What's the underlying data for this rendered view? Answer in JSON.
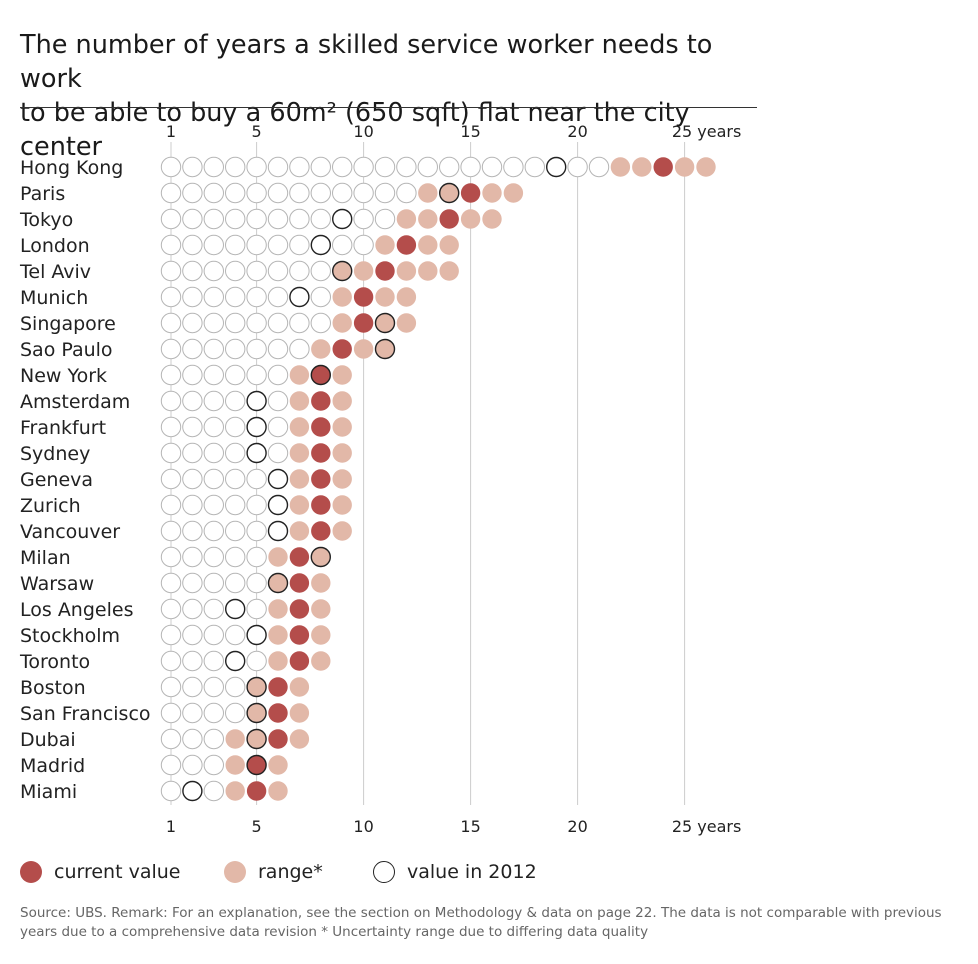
{
  "title_line1": "The number of years a skilled service worker needs to work",
  "title_line2": "to be able to buy a 60m² (650 sqft) flat near the city center",
  "colors": {
    "current": "#b44d4b",
    "range": "#e2b8a8",
    "empty_stroke": "#b5b5b5",
    "marker_2012_stroke": "#222222",
    "grid": "#cccccc"
  },
  "legend": {
    "current": "current value",
    "range": "range*",
    "y2012": "value in 2012"
  },
  "source": "Source: UBS. Remark: For an explanation, see the section on Methodology & data on page 22. The data is not comparable with previous years due to a comprehensive data revision   * Uncertainty range due to differing data quality",
  "chart_data": {
    "type": "dot-plot",
    "xlim": [
      1,
      26
    ],
    "x_ticks": [
      1,
      5,
      10,
      15,
      20,
      25
    ],
    "x_tick_labels": [
      "1",
      "5",
      "10",
      "15",
      "20",
      "25 years"
    ],
    "grid": true,
    "legend_position": "bottom-left",
    "series": [
      {
        "name": "current value"
      },
      {
        "name": "range*"
      },
      {
        "name": "value in 2012"
      }
    ],
    "cities": [
      {
        "name": "Hong Kong",
        "current": 24,
        "range": [
          22,
          26
        ],
        "y2012": 19
      },
      {
        "name": "Paris",
        "current": 15,
        "range": [
          13,
          17
        ],
        "y2012": 14
      },
      {
        "name": "Tokyo",
        "current": 14,
        "range": [
          12,
          16
        ],
        "y2012": 9
      },
      {
        "name": "London",
        "current": 12,
        "range": [
          11,
          14
        ],
        "y2012": 8
      },
      {
        "name": "Tel Aviv",
        "current": 11,
        "range": [
          9,
          14
        ],
        "y2012": 9
      },
      {
        "name": "Munich",
        "current": 10,
        "range": [
          9,
          12
        ],
        "y2012": 7
      },
      {
        "name": "Singapore",
        "current": 10,
        "range": [
          9,
          12
        ],
        "y2012": 11
      },
      {
        "name": "Sao Paulo",
        "current": 9,
        "range": [
          8,
          11
        ],
        "y2012": 11
      },
      {
        "name": "New York",
        "current": 8,
        "range": [
          7,
          9
        ],
        "y2012": 8
      },
      {
        "name": "Amsterdam",
        "current": 8,
        "range": [
          7,
          9
        ],
        "y2012": 5
      },
      {
        "name": "Frankfurt",
        "current": 8,
        "range": [
          7,
          9
        ],
        "y2012": 5
      },
      {
        "name": "Sydney",
        "current": 8,
        "range": [
          7,
          9
        ],
        "y2012": 5
      },
      {
        "name": "Geneva",
        "current": 8,
        "range": [
          7,
          9
        ],
        "y2012": 6
      },
      {
        "name": "Zurich",
        "current": 8,
        "range": [
          7,
          9
        ],
        "y2012": 6
      },
      {
        "name": "Vancouver",
        "current": 8,
        "range": [
          7,
          9
        ],
        "y2012": 6
      },
      {
        "name": "Milan",
        "current": 7,
        "range": [
          6,
          8
        ],
        "y2012": 8
      },
      {
        "name": "Warsaw",
        "current": 7,
        "range": [
          6,
          8
        ],
        "y2012": 6
      },
      {
        "name": "Los Angeles",
        "current": 7,
        "range": [
          6,
          8
        ],
        "y2012": 4
      },
      {
        "name": "Stockholm",
        "current": 7,
        "range": [
          6,
          8
        ],
        "y2012": 5
      },
      {
        "name": "Toronto",
        "current": 7,
        "range": [
          6,
          8
        ],
        "y2012": 4
      },
      {
        "name": "Boston",
        "current": 6,
        "range": [
          5,
          7
        ],
        "y2012": 5
      },
      {
        "name": "San Francisco",
        "current": 6,
        "range": [
          5,
          7
        ],
        "y2012": 5
      },
      {
        "name": "Dubai",
        "current": 6,
        "range": [
          4,
          7
        ],
        "y2012": 5
      },
      {
        "name": "Madrid",
        "current": 5,
        "range": [
          4,
          6
        ],
        "y2012": 5
      },
      {
        "name": "Miami",
        "current": 5,
        "range": [
          4,
          6
        ],
        "y2012": 2
      }
    ]
  }
}
